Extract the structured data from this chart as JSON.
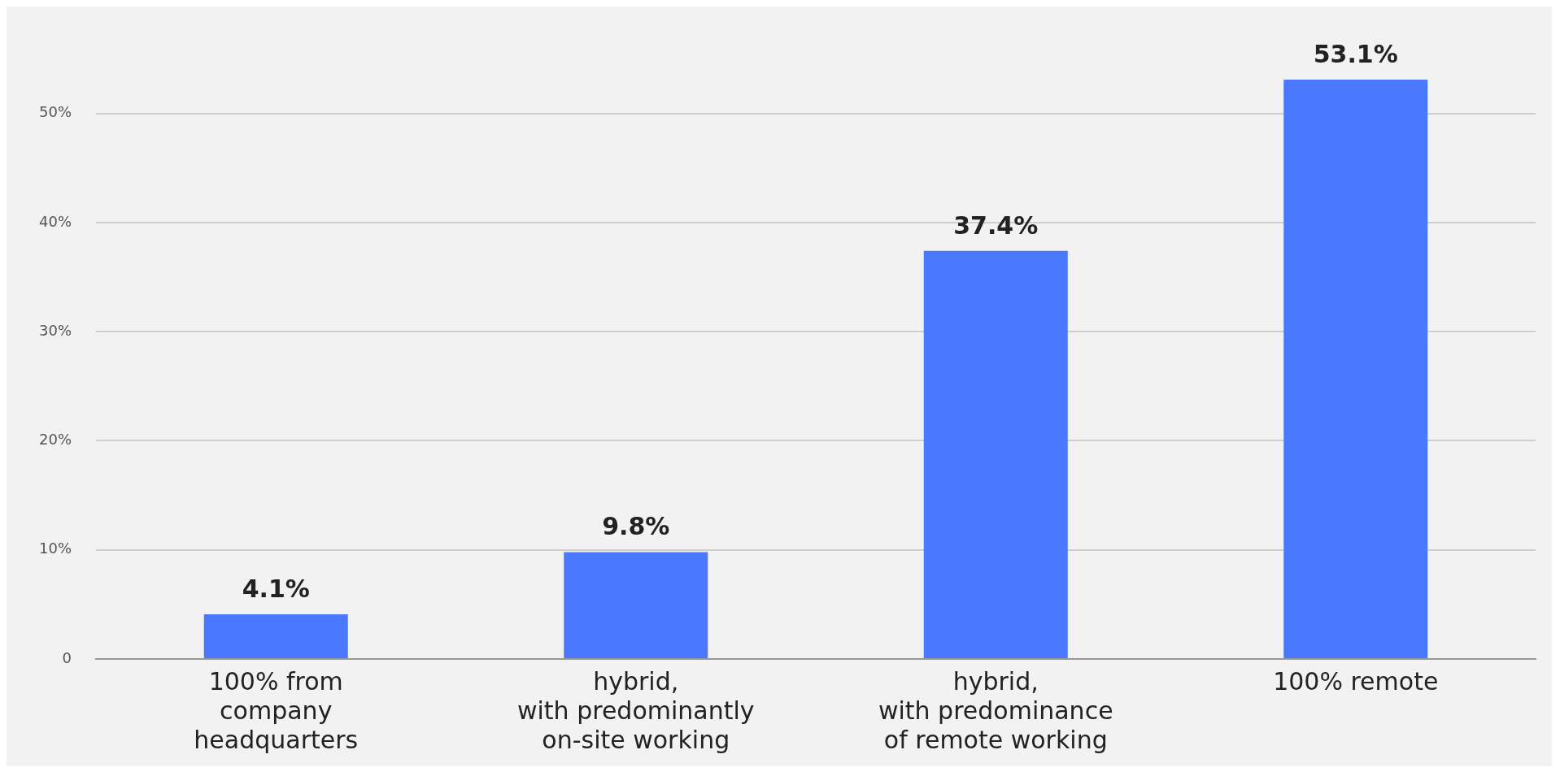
{
  "chart_data": {
    "type": "bar",
    "categories": [
      "100% from\ncompany\nheadquarters",
      "hybrid,\nwith predominantly\non-site working",
      "hybrid,\nwith predominance\nof remote working",
      "100% remote"
    ],
    "values": [
      4.1,
      9.8,
      37.4,
      53.1
    ],
    "value_labels": [
      "4.1%",
      "9.8%",
      "37.4%",
      "53.1%"
    ],
    "color": "#4a78ff",
    "ylim": [
      0,
      53.1
    ],
    "yticks": [
      {
        "value": 0,
        "label": "0"
      },
      {
        "value": 10,
        "label": "10%"
      },
      {
        "value": 20,
        "label": "20%"
      },
      {
        "value": 30,
        "label": "30%"
      },
      {
        "value": 40,
        "label": "40%"
      },
      {
        "value": 50,
        "label": "50%"
      }
    ],
    "grid": "y",
    "legend": false
  }
}
